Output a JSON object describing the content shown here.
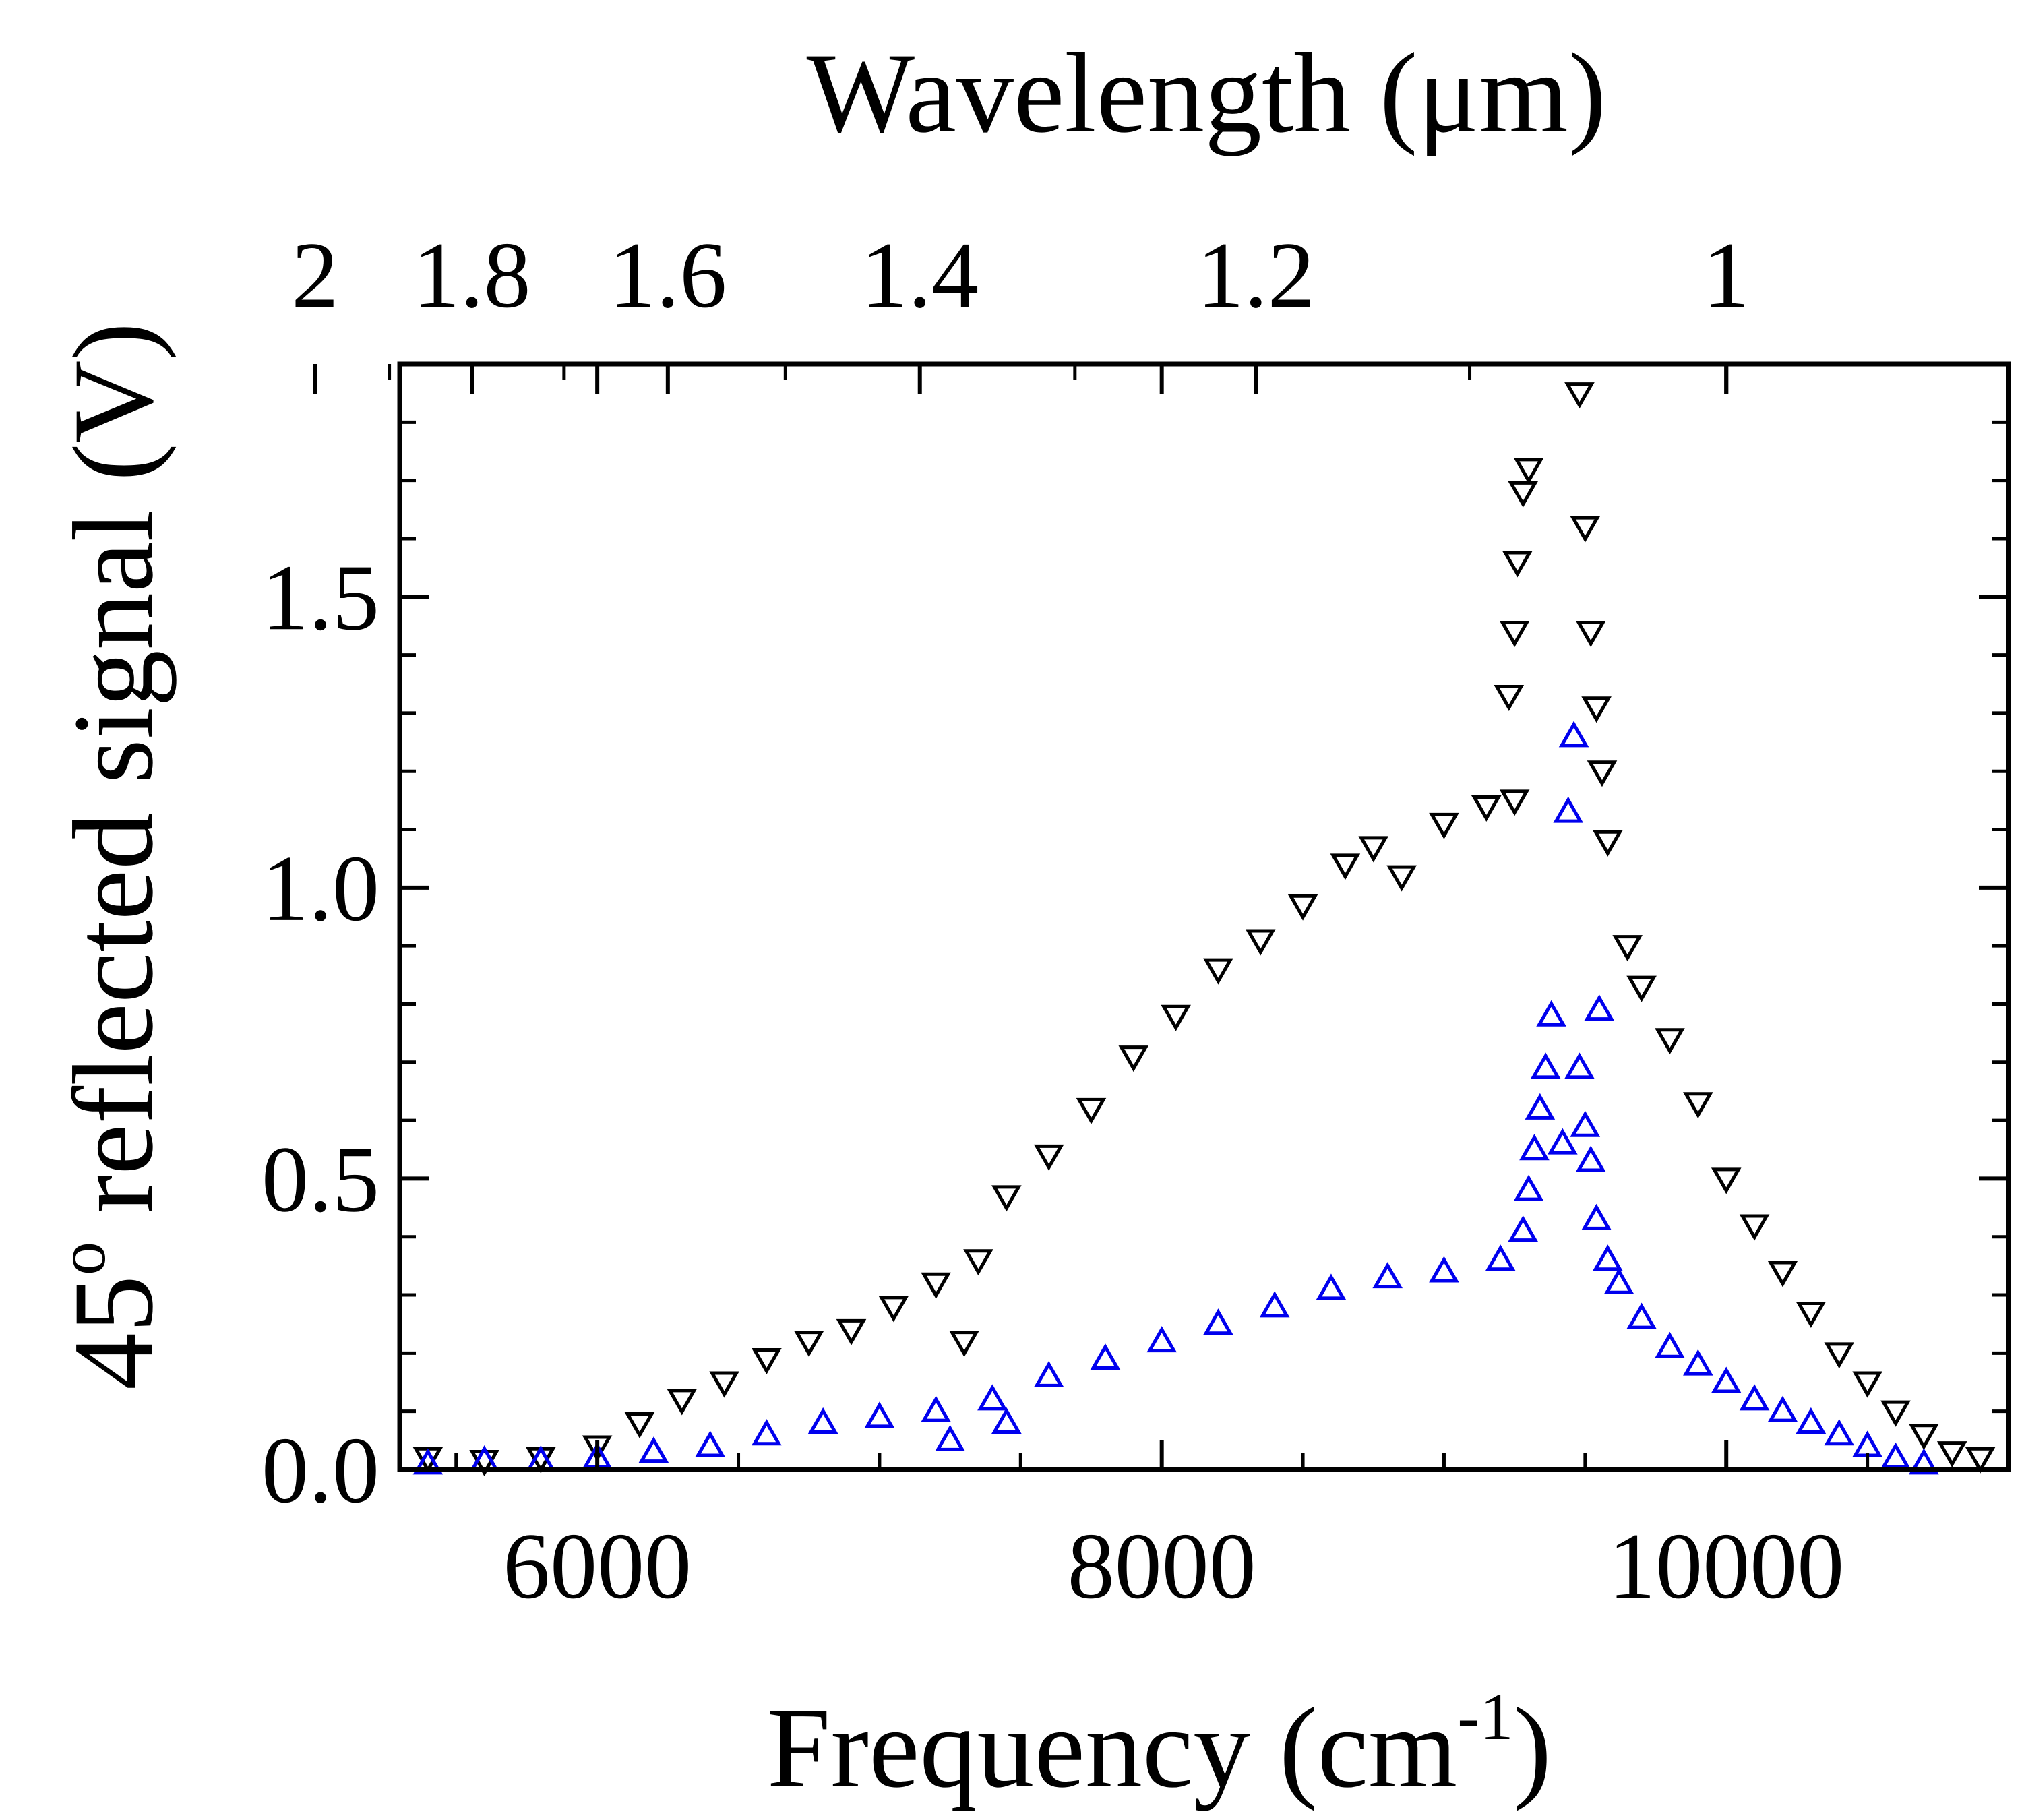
{
  "chart_data": {
    "type": "scatter",
    "title": "",
    "xlabel": "Frequency (cm",
    "xlabel_sup": "-1",
    "xlabel_close": ")",
    "ylabel": "45",
    "ylabel_sup": "o",
    "ylabel_rest": " reflected signal (V)",
    "top_xlabel": "Wavelength (μm)",
    "xlim": [
      5300,
      11000
    ],
    "ylim": [
      0.0,
      1.9
    ],
    "x_ticks": [
      {
        "value": 6000,
        "label": "6000"
      },
      {
        "value": 8000,
        "label": "8000"
      },
      {
        "value": 10000,
        "label": "10000"
      }
    ],
    "y_ticks": [
      {
        "value": 0.0,
        "label": "0.0"
      },
      {
        "value": 0.5,
        "label": "0.5"
      },
      {
        "value": 1.0,
        "label": "1.0"
      },
      {
        "value": 1.5,
        "label": "1.5"
      }
    ],
    "top_ticks": [
      {
        "wavelength": 2.0,
        "label": "2"
      },
      {
        "wavelength": 1.8,
        "label": "1.8"
      },
      {
        "wavelength": 1.6,
        "label": "1.6"
      },
      {
        "wavelength": 1.4,
        "label": "1.4"
      },
      {
        "wavelength": 1.2,
        "label": "1.2"
      },
      {
        "wavelength": 1.0,
        "label": "1"
      }
    ],
    "series": [
      {
        "name": "black (down triangles)",
        "color": "#000000",
        "marker": "triangle-down",
        "points": [
          [
            5400,
            0.02
          ],
          [
            5600,
            0.015
          ],
          [
            5800,
            0.02
          ],
          [
            6000,
            0.04
          ],
          [
            6150,
            0.08
          ],
          [
            6300,
            0.12
          ],
          [
            6450,
            0.15
          ],
          [
            6600,
            0.19
          ],
          [
            6750,
            0.22
          ],
          [
            6900,
            0.24
          ],
          [
            7050,
            0.28
          ],
          [
            7200,
            0.32
          ],
          [
            7350,
            0.36
          ],
          [
            7300,
            0.22
          ],
          [
            7450,
            0.47
          ],
          [
            7600,
            0.54
          ],
          [
            7750,
            0.62
          ],
          [
            7900,
            0.71
          ],
          [
            8050,
            0.78
          ],
          [
            8200,
            0.86
          ],
          [
            8350,
            0.91
          ],
          [
            8500,
            0.97
          ],
          [
            8650,
            1.04
          ],
          [
            8750,
            1.07
          ],
          [
            8850,
            1.02
          ],
          [
            9000,
            1.11
          ],
          [
            9150,
            1.14
          ],
          [
            9250,
            1.15
          ],
          [
            9230,
            1.33
          ],
          [
            9250,
            1.44
          ],
          [
            9260,
            1.56
          ],
          [
            9280,
            1.68
          ],
          [
            9300,
            1.72
          ],
          [
            9480,
            1.85
          ],
          [
            9500,
            1.62
          ],
          [
            9520,
            1.44
          ],
          [
            9540,
            1.31
          ],
          [
            9560,
            1.2
          ],
          [
            9580,
            1.08
          ],
          [
            9650,
            0.9
          ],
          [
            9700,
            0.83
          ],
          [
            9800,
            0.74
          ],
          [
            9900,
            0.63
          ],
          [
            10000,
            0.5
          ],
          [
            10100,
            0.42
          ],
          [
            10200,
            0.34
          ],
          [
            10300,
            0.27
          ],
          [
            10400,
            0.2
          ],
          [
            10500,
            0.15
          ],
          [
            10600,
            0.1
          ],
          [
            10700,
            0.06
          ],
          [
            10800,
            0.03
          ],
          [
            10900,
            0.02
          ]
        ]
      },
      {
        "name": "blue (up triangles)",
        "color": "#0000ee",
        "marker": "triangle-up",
        "points": [
          [
            5400,
            0.01
          ],
          [
            5600,
            0.015
          ],
          [
            5800,
            0.015
          ],
          [
            6000,
            0.02
          ],
          [
            6200,
            0.03
          ],
          [
            6400,
            0.04
          ],
          [
            6600,
            0.06
          ],
          [
            6800,
            0.08
          ],
          [
            7000,
            0.09
          ],
          [
            7200,
            0.1
          ],
          [
            7250,
            0.05
          ],
          [
            7400,
            0.12
          ],
          [
            7450,
            0.08
          ],
          [
            7600,
            0.16
          ],
          [
            7800,
            0.19
          ],
          [
            8000,
            0.22
          ],
          [
            8200,
            0.25
          ],
          [
            8400,
            0.28
          ],
          [
            8600,
            0.31
          ],
          [
            8800,
            0.33
          ],
          [
            9000,
            0.34
          ],
          [
            9200,
            0.36
          ],
          [
            9280,
            0.41
          ],
          [
            9300,
            0.48
          ],
          [
            9320,
            0.55
          ],
          [
            9340,
            0.62
          ],
          [
            9360,
            0.69
          ],
          [
            9380,
            0.78
          ],
          [
            9420,
            0.56
          ],
          [
            9440,
            1.13
          ],
          [
            9460,
            1.26
          ],
          [
            9480,
            0.69
          ],
          [
            9500,
            0.59
          ],
          [
            9520,
            0.53
          ],
          [
            9540,
            0.43
          ],
          [
            9550,
            0.79
          ],
          [
            9580,
            0.36
          ],
          [
            9620,
            0.32
          ],
          [
            9700,
            0.26
          ],
          [
            9800,
            0.21
          ],
          [
            9900,
            0.18
          ],
          [
            10000,
            0.15
          ],
          [
            10100,
            0.12
          ],
          [
            10200,
            0.1
          ],
          [
            10300,
            0.08
          ],
          [
            10400,
            0.06
          ],
          [
            10500,
            0.04
          ],
          [
            10600,
            0.02
          ],
          [
            10700,
            0.01
          ]
        ]
      }
    ]
  }
}
